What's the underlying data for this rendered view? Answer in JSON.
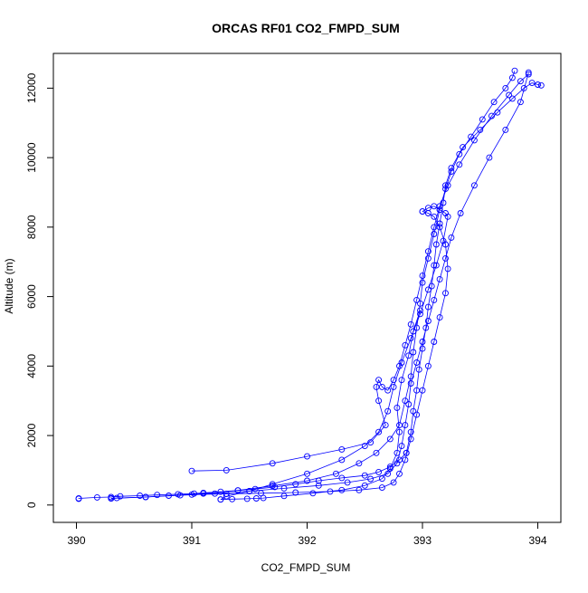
{
  "chart_data": {
    "type": "scatter",
    "title": "ORCAS RF01 CO2_FMPD_SUM",
    "xlabel": "CO2_FMPD_SUM",
    "ylabel": "Altitude (m)",
    "xlim": [
      389.8,
      394.2
    ],
    "ylim": [
      -500,
      13000
    ],
    "x_ticks": [
      390,
      391,
      392,
      393,
      394
    ],
    "y_ticks": [
      0,
      2000,
      4000,
      6000,
      8000,
      10000,
      12000
    ],
    "x_tick_labels": [
      "390",
      "391",
      "392",
      "393",
      "394"
    ],
    "y_tick_labels": [
      "0",
      "2000",
      "4000",
      "6000",
      "8000",
      "10000",
      "12000"
    ],
    "grid": false,
    "marker": "open-circle",
    "connected": true,
    "color": "#0000ff",
    "series": [
      {
        "x": [
          390.02,
          390.02,
          390.18,
          390.3,
          390.38,
          390.55,
          390.7,
          390.88,
          391.02,
          391.1,
          391.25,
          391.4,
          391.55,
          391.72,
          391.9,
          392.1,
          392.3,
          392.5,
          392.62,
          392.72,
          392.8,
          392.86
        ],
        "y": [
          180,
          190,
          220,
          230,
          250,
          270,
          290,
          310,
          330,
          350,
          380,
          420,
          460,
          520,
          600,
          700,
          780,
          850,
          950,
          1100,
          1300,
          1500
        ]
      },
      {
        "x": [
          392.86,
          392.9,
          392.92,
          392.95,
          392.97,
          393.0,
          393.03,
          393.05,
          393.08,
          393.1,
          393.12,
          393.15,
          393.18,
          393.2,
          393.25,
          393.35,
          393.5,
          393.65,
          393.78,
          393.88,
          393.95,
          394.0,
          394.03
        ],
        "y": [
          1500,
          2100,
          2700,
          3300,
          3900,
          4500,
          5100,
          5700,
          6300,
          6900,
          7500,
          8100,
          8700,
          9200,
          9700,
          10300,
          10800,
          11300,
          11700,
          12000,
          12150,
          12100,
          12080
        ]
      },
      {
        "x": [
          393.8,
          393.78,
          393.72,
          393.62,
          393.52,
          393.42,
          393.32,
          393.25,
          393.2,
          393.15,
          393.1,
          393.05,
          393.0,
          392.98,
          392.95,
          392.92,
          392.9,
          392.85,
          392.8,
          392.72,
          392.6,
          392.45,
          392.25,
          392.0,
          391.7,
          391.4,
          391.1,
          390.8,
          390.6,
          390.35,
          390.3
        ],
        "y": [
          12500,
          12300,
          12000,
          11600,
          11100,
          10600,
          10100,
          9600,
          9100,
          8500,
          7800,
          7100,
          6400,
          5800,
          5100,
          4400,
          3700,
          3000,
          2300,
          1900,
          1500,
          1200,
          900,
          700,
          550,
          420,
          330,
          270,
          230,
          200,
          190
        ]
      },
      {
        "x": [
          390.3,
          390.6,
          390.9,
          391.2,
          391.5,
          391.8,
          392.1,
          392.35,
          392.55,
          392.7,
          392.78,
          392.82,
          392.85,
          392.88,
          392.9,
          392.95,
          393.0,
          393.05,
          393.1,
          393.15,
          393.2,
          393.25,
          393.33,
          393.45,
          393.58,
          393.72,
          393.85,
          393.92
        ],
        "y": [
          190,
          230,
          280,
          330,
          400,
          480,
          560,
          650,
          750,
          900,
          1200,
          1700,
          2300,
          2900,
          3500,
          4100,
          4700,
          5300,
          5900,
          6500,
          7100,
          7700,
          8400,
          9200,
          10000,
          10800,
          11600,
          12450
        ]
      },
      {
        "x": [
          393.92,
          393.85,
          393.75,
          393.6,
          393.45,
          393.32,
          393.22,
          393.15,
          393.1,
          393.05,
          393.0,
          392.95,
          392.9,
          392.85,
          392.8,
          392.75,
          392.7,
          392.65,
          392.62,
          392.6,
          392.62,
          392.68,
          392.55,
          392.3,
          392.0,
          391.7,
          391.3,
          391.0
        ],
        "y": [
          12400,
          12200,
          11800,
          11200,
          10500,
          9800,
          9200,
          8600,
          8000,
          7300,
          6600,
          5900,
          5200,
          4600,
          4000,
          3600,
          3300,
          3400,
          3600,
          3400,
          3000,
          2300,
          1800,
          1600,
          1400,
          1200,
          1000,
          980
        ]
      },
      {
        "x": [
          391.0,
          391.3,
          391.6,
          391.9,
          392.2,
          392.45,
          392.65,
          392.75,
          392.8,
          392.85,
          392.9,
          392.95,
          393.0,
          393.05,
          393.1,
          393.15,
          393.2,
          393.22,
          393.2,
          393.15,
          393.1,
          393.05,
          393.0
        ],
        "y": [
          300,
          320,
          340,
          360,
          390,
          430,
          500,
          650,
          900,
          1300,
          1900,
          2600,
          3300,
          4000,
          4700,
          5400,
          6100,
          6800,
          7500,
          8000,
          8300,
          8400,
          8450
        ]
      },
      {
        "x": [
          393.0,
          393.05,
          393.1,
          393.15,
          393.2,
          393.22,
          393.18,
          393.12,
          393.05,
          392.98,
          392.9,
          392.82,
          392.75,
          392.7,
          392.62,
          392.5,
          392.3,
          392.0,
          391.7,
          391.5,
          391.3,
          391.25
        ],
        "y": [
          8450,
          8550,
          8600,
          8500,
          8400,
          8300,
          7600,
          6900,
          6200,
          5500,
          4800,
          4100,
          3400,
          2700,
          2100,
          1700,
          1300,
          900,
          600,
          400,
          250,
          160
        ]
      },
      {
        "x": [
          391.25,
          391.35,
          391.48,
          391.56,
          391.62,
          391.8,
          392.05,
          392.3,
          392.5,
          392.65,
          392.72,
          392.78,
          392.8,
          392.78,
          392.82,
          392.88,
          392.92,
          392.98
        ],
        "y": [
          160,
          170,
          180,
          190,
          200,
          260,
          340,
          430,
          560,
          760,
          1050,
          1500,
          2100,
          2800,
          3600,
          4300,
          5000,
          5600
        ]
      }
    ]
  }
}
